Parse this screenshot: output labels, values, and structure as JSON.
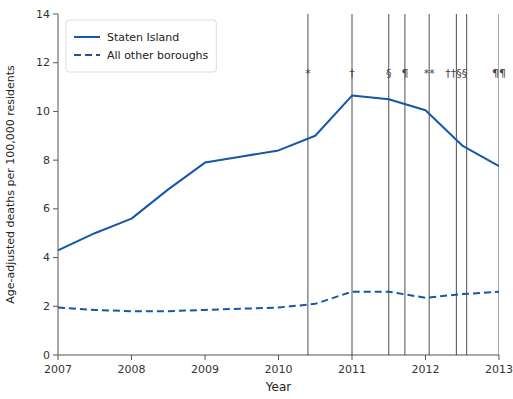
{
  "chart_data": {
    "type": "line",
    "x": [
      2007,
      2007.5,
      2008,
      2008.5,
      2009,
      2009.5,
      2010,
      2010.5,
      2011,
      2011.5,
      2012,
      2012.5,
      2013
    ],
    "series": [
      {
        "name": "Staten Island",
        "color": "#1558a7",
        "line_style": "solid",
        "values": [
          4.3,
          5.0,
          5.6,
          6.8,
          7.9,
          8.15,
          8.4,
          9.0,
          10.65,
          10.5,
          10.05,
          8.6,
          7.75
        ]
      },
      {
        "name": "All other boroughs",
        "color": "#1558a7",
        "line_style": "dashed",
        "values": [
          1.95,
          1.85,
          1.8,
          1.8,
          1.85,
          1.9,
          1.95,
          2.1,
          2.6,
          2.6,
          2.35,
          2.5,
          2.6
        ]
      }
    ],
    "vlines": [
      2010.4,
      2011.0,
      2011.5,
      2011.72,
      2012.05,
      2012.42,
      2012.56,
      2013.0
    ],
    "annotations": [
      {
        "x": 2010.4,
        "y": 11.35,
        "text": "*"
      },
      {
        "x": 2011.0,
        "y": 11.35,
        "text": "†"
      },
      {
        "x": 2011.5,
        "y": 11.35,
        "text": "§"
      },
      {
        "x": 2011.72,
        "y": 11.35,
        "text": "¶"
      },
      {
        "x": 2012.05,
        "y": 11.35,
        "text": "**"
      },
      {
        "x": 2012.42,
        "y": 11.35,
        "text": "††§§"
      },
      {
        "x": 2013.0,
        "y": 11.35,
        "text": "¶¶"
      }
    ],
    "xlabel": "Year",
    "ylabel": "Age-adjusted deaths per 100,000 residents",
    "xlim": [
      2007,
      2013
    ],
    "ylim": [
      0,
      14
    ],
    "xticks": [
      2007,
      2008,
      2009,
      2010,
      2011,
      2012,
      2013
    ],
    "yticks": [
      0,
      2,
      4,
      6,
      8,
      10,
      12,
      14
    ],
    "grid": false,
    "legend": "upper left"
  }
}
